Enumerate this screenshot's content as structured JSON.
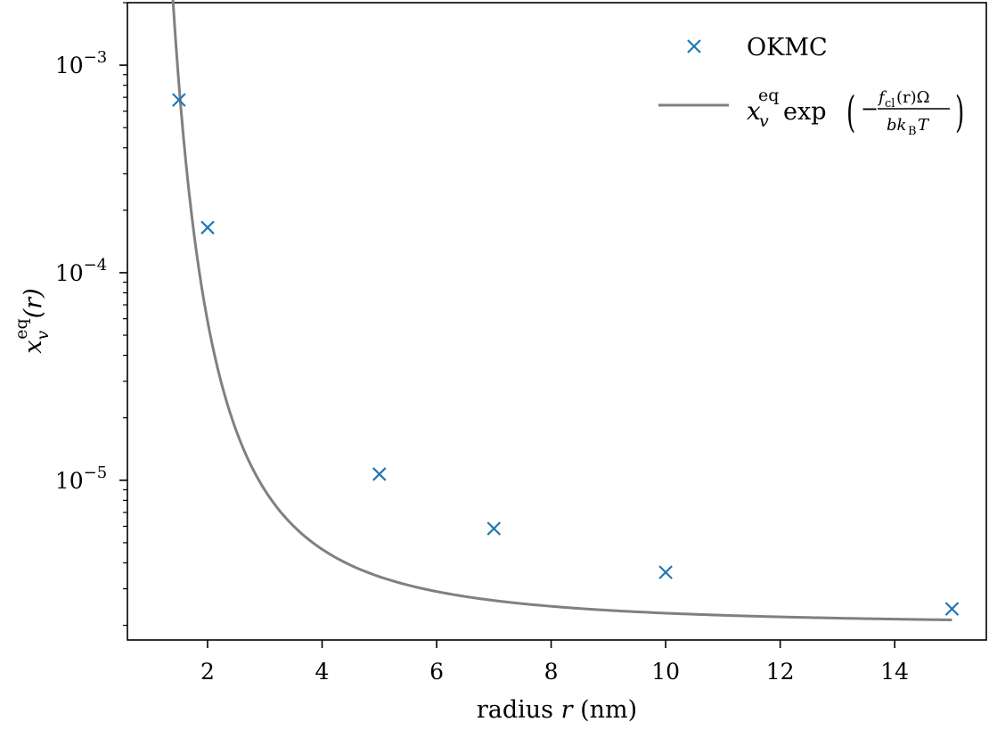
{
  "chart_data": {
    "type": "scatter",
    "xlabel": "radius r (nm)",
    "ylabel": "x_v^eq(r)",
    "xlim": [
      0.6,
      15.6
    ],
    "ylim": [
      1.7e-06,
      0.002
    ],
    "yscale": "log",
    "grid": false,
    "legend_position": "top-right",
    "x_ticks": [
      2,
      4,
      6,
      8,
      10,
      12,
      14
    ],
    "x_tick_labels": [
      "2",
      "4",
      "6",
      "8",
      "10",
      "12",
      "14"
    ],
    "y_major_ticks": [
      1e-05,
      0.0001,
      0.001
    ],
    "series": [
      {
        "name": "OKMC",
        "kind": "scatter",
        "marker": "x",
        "color": "#1f77b4",
        "x": [
          1.5,
          2,
          5,
          7,
          10,
          15
        ],
        "y": [
          0.00068,
          0.000165,
          1.07e-05,
          5.85e-06,
          3.6e-06,
          2.4e-06
        ]
      },
      {
        "name": "x_v^eq exp(−f_cl(r)Ω / b k_B T)",
        "kind": "line",
        "color": "#808080",
        "model": "x_inf * exp(A / r^2)",
        "x_start": 1.3,
        "x_end": 15.0,
        "x_inf": 2e-06,
        "A": 13.5
      }
    ]
  },
  "labels": {
    "xlabel_prefix": "radius ",
    "xlabel_var": "r",
    "xlabel_unit": " (nm)",
    "ylabel_base": "x",
    "ylabel_sub": "v",
    "ylabel_sup": "eq",
    "ylabel_arg": "(r)",
    "y_tick_base": "10",
    "legend_okmc": "OKMC",
    "legend_formula": {
      "x": "x",
      "sub_v": "v",
      "sup_eq": "eq",
      "exp": "exp",
      "minus": "−",
      "num_f": "f",
      "num_sub": "cl",
      "num_rest": "(r)Ω",
      "den_b": "bk",
      "den_sub": "B",
      "den_T": "T",
      "lparen": "(",
      "rparen": ")"
    }
  }
}
